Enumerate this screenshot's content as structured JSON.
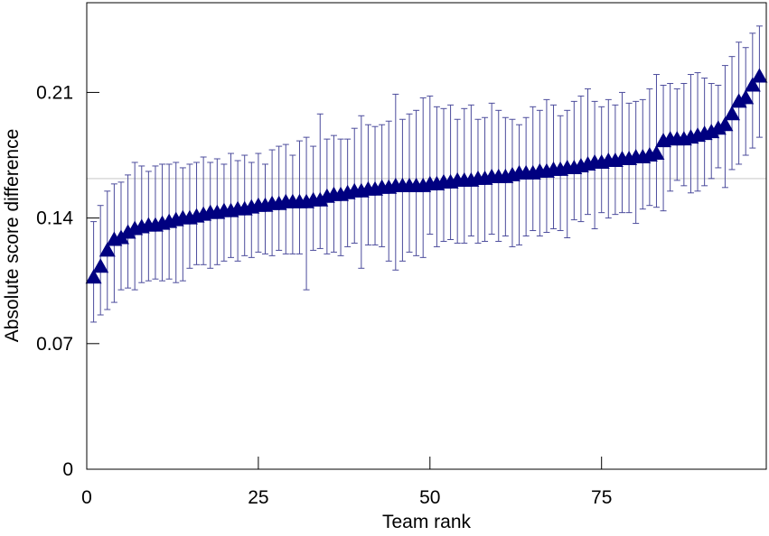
{
  "chart_data": {
    "type": "scatter",
    "xlabel": "Team rank",
    "ylabel": "Absolute score difference",
    "xlim": [
      0,
      99
    ],
    "ylim": [
      0,
      0.26
    ],
    "x_ticks": [
      {
        "value": 0,
        "label": "0"
      },
      {
        "value": 25,
        "label": "25"
      },
      {
        "value": 50,
        "label": "50"
      },
      {
        "value": 75,
        "label": "75"
      }
    ],
    "y_ticks": [
      {
        "value": 0,
        "label": "0"
      },
      {
        "value": 0.07,
        "label": "0.07"
      },
      {
        "value": 0.14,
        "label": "0.14"
      },
      {
        "value": 0.21,
        "label": "0.21"
      }
    ],
    "reference_line": {
      "y": 0.162,
      "color": "#d9d9d9"
    },
    "marker": {
      "shape": "triangle",
      "color": "#000080"
    },
    "errorbar_color": "#4c4c9c",
    "grid": false,
    "legend": "none",
    "x": [
      1,
      2,
      3,
      4,
      5,
      6,
      7,
      8,
      9,
      10,
      11,
      12,
      13,
      14,
      15,
      16,
      17,
      18,
      19,
      20,
      21,
      22,
      23,
      24,
      25,
      26,
      27,
      28,
      29,
      30,
      31,
      32,
      33,
      34,
      35,
      36,
      37,
      38,
      39,
      40,
      41,
      42,
      43,
      44,
      45,
      46,
      47,
      48,
      49,
      50,
      51,
      52,
      53,
      54,
      55,
      56,
      57,
      58,
      59,
      60,
      61,
      62,
      63,
      64,
      65,
      66,
      67,
      68,
      69,
      70,
      71,
      72,
      73,
      74,
      75,
      76,
      77,
      78,
      79,
      80,
      81,
      82,
      83,
      84,
      85,
      86,
      87,
      88,
      89,
      90,
      91,
      92,
      93,
      94,
      95,
      96,
      97,
      98
    ],
    "y": [
      0.107,
      0.113,
      0.122,
      0.128,
      0.129,
      0.132,
      0.134,
      0.135,
      0.136,
      0.136,
      0.137,
      0.138,
      0.139,
      0.14,
      0.14,
      0.141,
      0.142,
      0.143,
      0.143,
      0.144,
      0.144,
      0.145,
      0.145,
      0.146,
      0.147,
      0.147,
      0.148,
      0.148,
      0.149,
      0.149,
      0.149,
      0.149,
      0.15,
      0.15,
      0.152,
      0.153,
      0.153,
      0.154,
      0.155,
      0.155,
      0.156,
      0.156,
      0.157,
      0.157,
      0.158,
      0.158,
      0.158,
      0.158,
      0.158,
      0.159,
      0.159,
      0.16,
      0.16,
      0.161,
      0.161,
      0.161,
      0.162,
      0.162,
      0.163,
      0.163,
      0.163,
      0.164,
      0.165,
      0.165,
      0.165,
      0.166,
      0.166,
      0.167,
      0.167,
      0.168,
      0.168,
      0.169,
      0.17,
      0.171,
      0.171,
      0.172,
      0.172,
      0.173,
      0.173,
      0.174,
      0.174,
      0.175,
      0.176,
      0.183,
      0.184,
      0.184,
      0.184,
      0.185,
      0.186,
      0.187,
      0.188,
      0.19,
      0.192,
      0.198,
      0.205,
      0.207,
      0.214,
      0.219
    ],
    "y_upper": [
      0.138,
      0.147,
      0.155,
      0.159,
      0.16,
      0.164,
      0.171,
      0.169,
      0.166,
      0.169,
      0.17,
      0.17,
      0.171,
      0.168,
      0.17,
      0.171,
      0.174,
      0.171,
      0.173,
      0.17,
      0.176,
      0.172,
      0.175,
      0.171,
      0.176,
      0.17,
      0.178,
      0.18,
      0.181,
      0.175,
      0.183,
      0.185,
      0.18,
      0.198,
      0.184,
      0.186,
      0.184,
      0.184,
      0.19,
      0.197,
      0.192,
      0.191,
      0.192,
      0.194,
      0.209,
      0.195,
      0.198,
      0.2,
      0.207,
      0.208,
      0.202,
      0.201,
      0.203,
      0.195,
      0.201,
      0.203,
      0.195,
      0.196,
      0.204,
      0.2,
      0.196,
      0.195,
      0.192,
      0.196,
      0.202,
      0.2,
      0.206,
      0.203,
      0.197,
      0.2,
      0.205,
      0.208,
      0.212,
      0.205,
      0.202,
      0.206,
      0.203,
      0.21,
      0.204,
      0.205,
      0.206,
      0.212,
      0.22,
      0.214,
      0.215,
      0.212,
      0.215,
      0.22,
      0.221,
      0.218,
      0.215,
      0.214,
      0.225,
      0.23,
      0.238,
      0.235,
      0.243,
      0.247
    ],
    "y_lower": [
      0.082,
      0.086,
      0.089,
      0.093,
      0.1,
      0.101,
      0.1,
      0.104,
      0.105,
      0.106,
      0.105,
      0.106,
      0.104,
      0.105,
      0.112,
      0.114,
      0.114,
      0.112,
      0.114,
      0.116,
      0.118,
      0.116,
      0.119,
      0.118,
      0.121,
      0.12,
      0.119,
      0.122,
      0.12,
      0.12,
      0.12,
      0.1,
      0.122,
      0.123,
      0.12,
      0.121,
      0.119,
      0.124,
      0.126,
      0.112,
      0.125,
      0.125,
      0.124,
      0.116,
      0.111,
      0.116,
      0.121,
      0.119,
      0.118,
      0.131,
      0.124,
      0.127,
      0.128,
      0.126,
      0.126,
      0.13,
      0.126,
      0.127,
      0.131,
      0.127,
      0.13,
      0.124,
      0.125,
      0.13,
      0.133,
      0.13,
      0.132,
      0.134,
      0.133,
      0.129,
      0.139,
      0.138,
      0.142,
      0.134,
      0.143,
      0.14,
      0.142,
      0.143,
      0.143,
      0.137,
      0.145,
      0.147,
      0.146,
      0.144,
      0.155,
      0.161,
      0.158,
      0.154,
      0.155,
      0.158,
      0.162,
      0.168,
      0.157,
      0.167,
      0.17,
      0.175,
      0.179,
      0.185
    ]
  }
}
